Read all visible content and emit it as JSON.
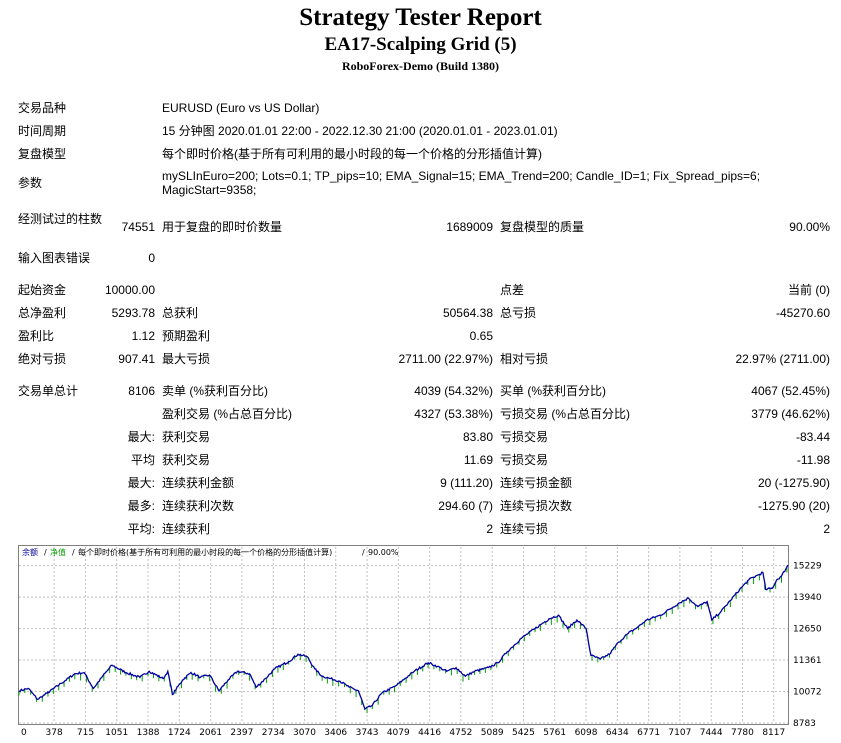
{
  "header": {
    "title": "Strategy Tester Report",
    "subtitle": "EA17-Scalping Grid (5)",
    "server": "RoboForex-Demo (Build 1380)"
  },
  "info": {
    "symbol_label": "交易品种",
    "symbol_value": "EURUSD (Euro vs US Dollar)",
    "period_label": "时间周期",
    "period_value": "15 分钟图 2020.01.01 22:00 - 2022.12.30 21:00 (2020.01.01 - 2023.01.01)",
    "model_label": "复盘模型",
    "model_value": "每个即时价格(基于所有可利用的最小时段的每一个价格的分形插值计算)",
    "params_label": "参数",
    "params_line1": "mySLInEuro=200; Lots=0.1; TP_pips=10; EMA_Signal=15; EMA_Trend=200; Candle_ID=1; Fix_Spread_pips=6;",
    "params_line2": "MagicStart=9358;"
  },
  "test": {
    "bars_label": "经测试过的柱数",
    "bars_value": "74551",
    "ticks_label": "用于复盘的即时价数量",
    "ticks_value": "1689009",
    "quality_label": "复盘模型的质量",
    "quality_value": "90.00%",
    "errors_label": "输入图表错误",
    "errors_value": "0"
  },
  "summary": {
    "deposit_label": "起始资金",
    "deposit_value": "10000.00",
    "spread_label": "点差",
    "spread_value": "当前 (0)",
    "net_label": "总净盈利",
    "net_value": "5293.78",
    "gross_profit_label": "总获利",
    "gross_profit_value": "50564.38",
    "gross_loss_label": "总亏损",
    "gross_loss_value": "-45270.60",
    "pf_label": "盈利比",
    "pf_value": "1.12",
    "payoff_label": "预期盈利",
    "payoff_value": "0.65",
    "abs_dd_label": "绝对亏损",
    "abs_dd_value": "907.41",
    "max_dd_label": "最大亏损",
    "max_dd_value": "2711.00 (22.97%)",
    "rel_dd_label": "相对亏损",
    "rel_dd_value": "22.97% (2711.00)"
  },
  "trades": {
    "total_label": "交易单总计",
    "total_value": "8106",
    "short_label": "卖单 (%获利百分比)",
    "short_value": "4039 (54.32%)",
    "long_label": "买单 (%获利百分比)",
    "long_value": "4067 (52.45%)",
    "win_label": "盈利交易 (%占总百分比)",
    "win_value": "4327 (53.38%)",
    "loss_label": "亏损交易 (%占总百分比)",
    "loss_value": "3779 (46.62%)",
    "largest_label": "最大:",
    "largest_win_label": "获利交易",
    "largest_win_value": "83.80",
    "largest_loss_label": "亏损交易",
    "largest_loss_value": "-83.44",
    "avg_label": "平均",
    "avg_win_label": "获利交易",
    "avg_win_value": "11.69",
    "avg_loss_label": "亏损交易",
    "avg_loss_value": "-11.98",
    "maxcons_label": "最大:",
    "maxcons_win_label": "连续获利金额",
    "maxcons_win_value": "9 (111.20)",
    "maxcons_loss_label": "连续亏损金额",
    "maxcons_loss_value": "20 (-1275.90)",
    "most_label": "最多:",
    "most_win_label": "连续获利次数",
    "most_win_value": "294.60 (7)",
    "most_loss_label": "连续亏损次数",
    "most_loss_value": "-1275.90 (20)",
    "avgcons_label": "平均:",
    "avgcons_win_label": "连续获利",
    "avgcons_win_value": "2",
    "avgcons_loss_label": "连续亏损",
    "avgcons_loss_value": "2"
  },
  "chart_data": {
    "type": "line",
    "legend_balance": "余额",
    "legend_sep1": "/",
    "legend_equity": "净值",
    "legend_sep2": "/",
    "legend_model": "每个即时价格(基于所有可利用的最小时段的每一个价格的分形插值计算)",
    "legend_sep3": "/",
    "legend_quality": "90.00%",
    "y_ticks": [
      8783,
      10072,
      11361,
      12650,
      13940,
      15229
    ],
    "x_ticks": [
      0,
      378,
      715,
      1051,
      1388,
      1724,
      2061,
      2397,
      2734,
      3070,
      3406,
      3743,
      4079,
      4416,
      4752,
      5089,
      5425,
      5761,
      6098,
      6434,
      6771,
      7107,
      7444,
      7780,
      8117
    ],
    "xlim": [
      0,
      8270
    ],
    "ylim": [
      8783,
      15500
    ],
    "grid": true,
    "colors": {
      "balance": "#0000a0",
      "equity": "#00a000",
      "grid": "#c0c0c0"
    },
    "series": [
      {
        "points": [
          [
            0,
            10100
          ],
          [
            100,
            10200
          ],
          [
            200,
            9750
          ],
          [
            300,
            10000
          ],
          [
            450,
            10400
          ],
          [
            600,
            10800
          ],
          [
            700,
            10850
          ],
          [
            800,
            10200
          ],
          [
            900,
            10700
          ],
          [
            1000,
            11150
          ],
          [
            1150,
            10850
          ],
          [
            1300,
            10650
          ],
          [
            1400,
            10900
          ],
          [
            1550,
            10600
          ],
          [
            1600,
            10900
          ],
          [
            1650,
            9950
          ],
          [
            1760,
            10550
          ],
          [
            1850,
            10850
          ],
          [
            1950,
            10650
          ],
          [
            2050,
            10750
          ],
          [
            2150,
            10100
          ],
          [
            2250,
            10550
          ],
          [
            2350,
            10900
          ],
          [
            2480,
            10800
          ],
          [
            2550,
            10250
          ],
          [
            2650,
            10600
          ],
          [
            2750,
            11000
          ],
          [
            2900,
            11300
          ],
          [
            3000,
            11600
          ],
          [
            3100,
            11500
          ],
          [
            3180,
            11000
          ],
          [
            3260,
            10700
          ],
          [
            3350,
            10600
          ],
          [
            3450,
            10500
          ],
          [
            3550,
            10250
          ],
          [
            3650,
            10100
          ],
          [
            3720,
            9350
          ],
          [
            3800,
            9500
          ],
          [
            3900,
            10000
          ],
          [
            4050,
            10300
          ],
          [
            4150,
            10600
          ],
          [
            4250,
            10900
          ],
          [
            4400,
            11250
          ],
          [
            4500,
            11100
          ],
          [
            4600,
            10900
          ],
          [
            4700,
            11050
          ],
          [
            4800,
            10700
          ],
          [
            4900,
            10900
          ],
          [
            5050,
            11050
          ],
          [
            5150,
            11250
          ],
          [
            5250,
            11700
          ],
          [
            5400,
            12250
          ],
          [
            5550,
            12650
          ],
          [
            5700,
            13050
          ],
          [
            5800,
            13200
          ],
          [
            5900,
            12650
          ],
          [
            6000,
            13000
          ],
          [
            6100,
            12650
          ],
          [
            6150,
            11550
          ],
          [
            6250,
            11400
          ],
          [
            6350,
            11600
          ],
          [
            6450,
            12100
          ],
          [
            6550,
            12450
          ],
          [
            6650,
            12700
          ],
          [
            6750,
            13000
          ],
          [
            6900,
            13200
          ],
          [
            7000,
            13450
          ],
          [
            7100,
            13700
          ],
          [
            7200,
            13900
          ],
          [
            7300,
            13550
          ],
          [
            7400,
            13750
          ],
          [
            7450,
            13000
          ],
          [
            7550,
            13350
          ],
          [
            7650,
            13800
          ],
          [
            7750,
            14250
          ],
          [
            7850,
            14650
          ],
          [
            7950,
            14850
          ],
          [
            8000,
            14950
          ],
          [
            8030,
            14250
          ],
          [
            8100,
            14300
          ],
          [
            8150,
            14650
          ],
          [
            8200,
            14800
          ],
          [
            8270,
            15250
          ]
        ]
      }
    ]
  }
}
